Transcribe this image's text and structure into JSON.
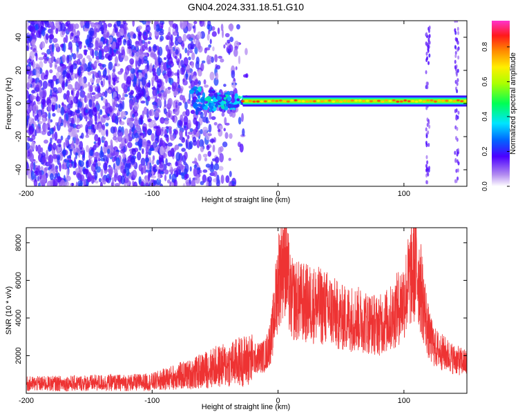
{
  "title": "GN04.2024.331.18.51.G10",
  "chart_data": [
    {
      "type": "heatmap",
      "xlabel": "Height of straight line (km)",
      "ylabel": "Frequency (Hz)",
      "xlim": [
        -200,
        150
      ],
      "ylim": [
        -50,
        50
      ],
      "xticks": [
        -200,
        -100,
        0,
        100
      ],
      "yticks": [
        -40,
        -20,
        0,
        20,
        40
      ],
      "colorbar": {
        "label": "Normalized spectral amplitude",
        "range": [
          0,
          0.95
        ],
        "ticks": [
          0.0,
          0.2,
          0.4,
          0.6,
          0.8
        ]
      },
      "description_values": {
        "noise_region_x": [
          -200,
          -28
        ],
        "signal_track_frequency_hz": 1.5,
        "signal_track_x": [
          -28,
          150
        ],
        "signal_track_amplitude": 0.9,
        "vertical_noise_lines_x": [
          119,
          142
        ]
      }
    },
    {
      "type": "line",
      "xlabel": "Height of straight line (km)",
      "ylabel": "SNR (10 * v/v)",
      "xlim": [
        -200,
        150
      ],
      "ylim": [
        0,
        8800
      ],
      "xticks": [
        -200,
        -100,
        0,
        100
      ],
      "yticks": [
        2000,
        4000,
        6000,
        8000
      ],
      "color": "#ee3333",
      "series": [
        {
          "x": [
            -200,
            -180,
            -160,
            -140,
            -120,
            -100,
            -90,
            -80,
            -70,
            -60,
            -50,
            -40,
            -30,
            -20,
            -10,
            -5,
            0,
            5,
            10,
            20,
            30,
            40,
            50,
            60,
            70,
            80,
            90,
            100,
            105,
            110,
            115,
            120,
            125,
            130,
            140,
            150
          ],
          "values": [
            500,
            520,
            530,
            560,
            560,
            600,
            750,
            900,
            1000,
            1200,
            1400,
            1500,
            1700,
            1800,
            2000,
            3000,
            6000,
            7500,
            5000,
            4800,
            4700,
            4500,
            4000,
            4000,
            3800,
            3600,
            4000,
            5000,
            6200,
            6800,
            5000,
            3000,
            2400,
            2200,
            1800,
            1600
          ]
        }
      ]
    }
  ]
}
